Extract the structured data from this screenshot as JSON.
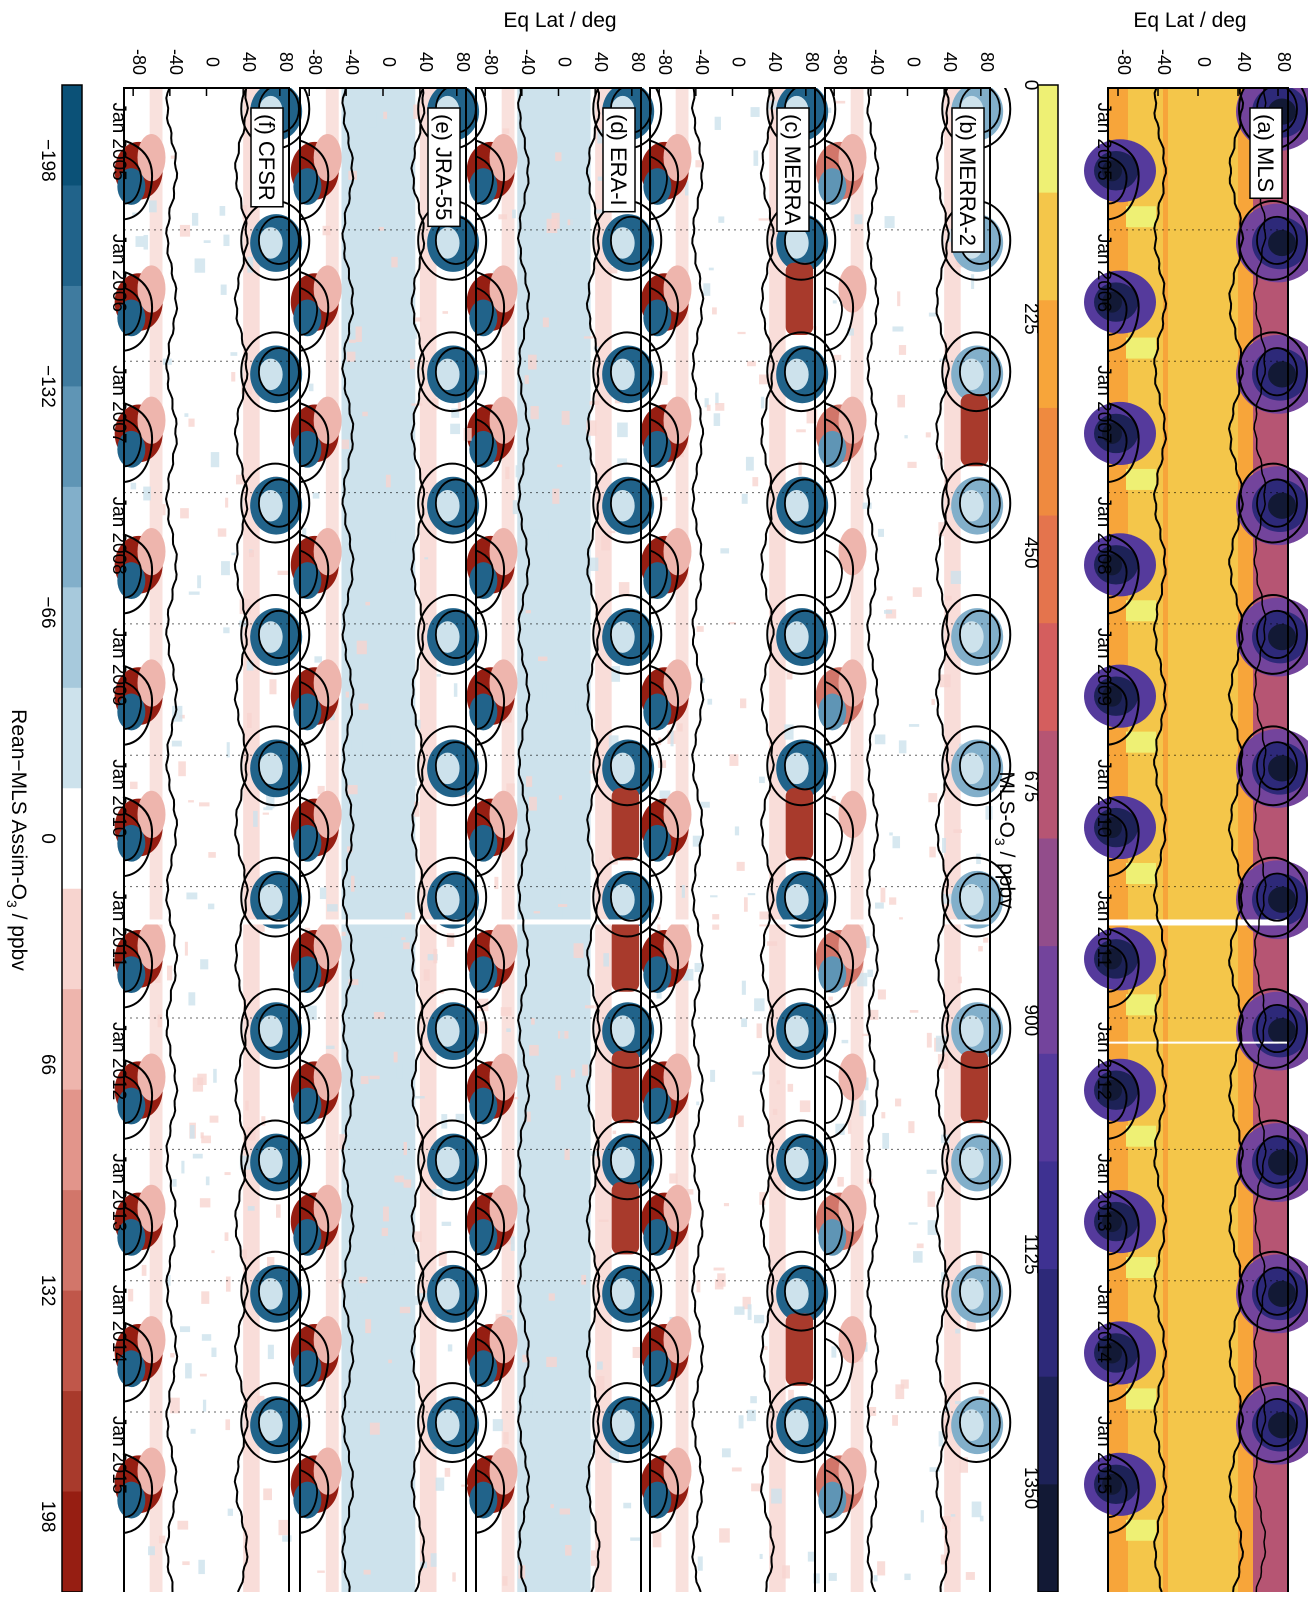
{
  "chart_data": {
    "type": "heatmap",
    "orientation": "rotated-90-clockwise",
    "x_ticks": [
      "Jan 2005",
      "Jan 2006",
      "Jan 2007",
      "Jan 2008",
      "Jan 2009",
      "Jan 2010",
      "Jan 2011",
      "Jan 2012",
      "Jan 2013",
      "Jan 2014",
      "Jan 2015"
    ],
    "y_ticks": [
      "-80",
      "-40",
      "0",
      "40",
      "80"
    ],
    "y_range": [
      -90,
      90
    ],
    "y_label": "Eq Lat / deg",
    "grid": "dotted vertical lines at each January",
    "panels": [
      {
        "label": "(a) MLS",
        "kind": "absolute",
        "gap_at": "Jan 2011"
      },
      {
        "label": "(b) MERRA-2",
        "kind": "difference"
      },
      {
        "label": "(c) MERRA",
        "kind": "difference"
      },
      {
        "label": "(d) ERA-I",
        "kind": "difference"
      },
      {
        "label": "(e) JRA-55",
        "kind": "difference"
      },
      {
        "label": "(f) CFSR",
        "kind": "difference"
      }
    ],
    "colorbar_mls": {
      "label_prefix": "MLS-O",
      "label_sub": "3",
      "label_suffix": " / ppbv",
      "ticks": [
        "0",
        "225",
        "450",
        "675",
        "900",
        "1125",
        "1350"
      ],
      "range": [
        0,
        1450
      ],
      "colors": [
        "#eef074",
        "#f4c64a",
        "#f7a53a",
        "#ef8a3f",
        "#e4744d",
        "#d45e5e",
        "#b65573",
        "#924d8b",
        "#73449c",
        "#553a9c",
        "#3e3191",
        "#2d2979",
        "#1d2257",
        "#121935"
      ]
    },
    "colorbar_diff": {
      "label_prefix": "Rean−MLS Assim-O",
      "label_sub": "3",
      "label_suffix": " / ppbv",
      "ticks": [
        "−198",
        "−132",
        "−66",
        "0",
        "66",
        "132",
        "198"
      ],
      "range": [
        -220,
        220
      ],
      "colors": [
        "#0b5177",
        "#21638a",
        "#3f7b9f",
        "#5f95b5",
        "#82afca",
        "#a7c9dc",
        "#cde2ec",
        "#ffffff",
        "#f7d4cf",
        "#eeb5ad",
        "#e2958b",
        "#d2766a",
        "#c0574a",
        "#a83a2c",
        "#961e12"
      ]
    }
  }
}
